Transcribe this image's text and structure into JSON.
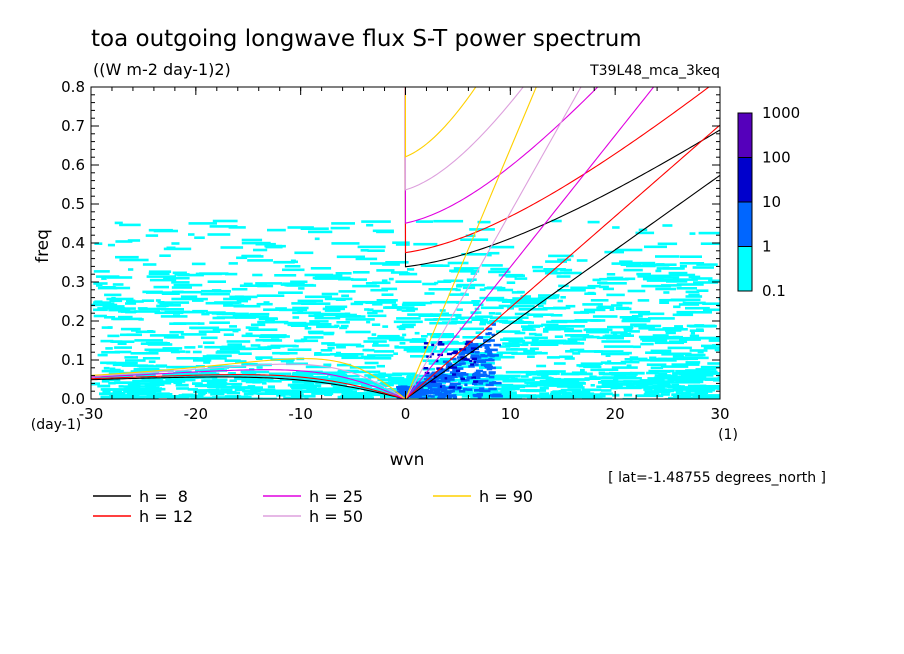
{
  "chart_data": {
    "type": "heatmap",
    "title": "toa outgoing longwave flux S-T power spectrum",
    "subtitle": "((W m-2 day-1)2)",
    "dataset": "T39L48_mca_3keq",
    "xlabel": "wvn",
    "ylabel": "freq",
    "y_unit_label": "(day-1)",
    "x_unit_label": "(1)",
    "location_note": "[ lat=-1.48755 degrees_north ]",
    "xlim": [
      -30,
      30
    ],
    "ylim": [
      0,
      0.8
    ],
    "xticks": [
      "-30",
      "-20",
      "-10",
      "0",
      "10",
      "20",
      "30"
    ],
    "yticks": [
      "0.0",
      "0.1",
      "0.2",
      "0.3",
      "0.4",
      "0.5",
      "0.6",
      "0.7",
      "0.8"
    ],
    "colorbar": {
      "levels": [
        "0.1",
        "1",
        "10",
        "100",
        "1000"
      ],
      "colors": [
        "#00ffff",
        "#0066ff",
        "#0000cc",
        "#5500bb"
      ]
    },
    "series": [
      {
        "name": "h =  8",
        "h": 8,
        "color": "#000000"
      },
      {
        "name": "h = 12",
        "h": 12,
        "color": "#ff0000"
      },
      {
        "name": "h = 25",
        "h": 25,
        "color": "#e000e0"
      },
      {
        "name": "h = 50",
        "h": 50,
        "color": "#dda0dd"
      },
      {
        "name": "h = 90",
        "h": 90,
        "color": "#ffd000"
      }
    ]
  }
}
